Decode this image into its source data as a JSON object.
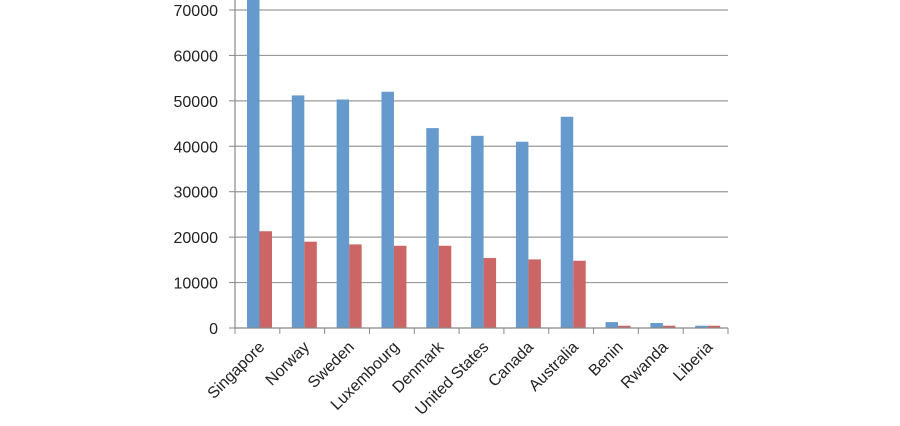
{
  "chart_data": {
    "type": "bar",
    "categories": [
      "Singapore",
      "Norway",
      "Sweden",
      "Luxembourg",
      "Denmark",
      "United States",
      "Canada",
      "Australia",
      "Benin",
      "Rwanda",
      "Liberia"
    ],
    "series": [
      {
        "values": [
          74000,
          51200,
          50300,
          52000,
          44000,
          42300,
          41000,
          46500,
          1300,
          1100,
          500
        ],
        "color": "#6699cc"
      },
      {
        "values": [
          21300,
          19000,
          18400,
          18100,
          18100,
          15400,
          15100,
          14800,
          500,
          500,
          500
        ],
        "color": "#cc6666"
      }
    ],
    "yticks": [
      "0",
      "10000",
      "20000",
      "30000",
      "40000",
      "50000",
      "60000",
      "70000"
    ],
    "ylim": [
      0,
      70000
    ],
    "grid": true
  }
}
